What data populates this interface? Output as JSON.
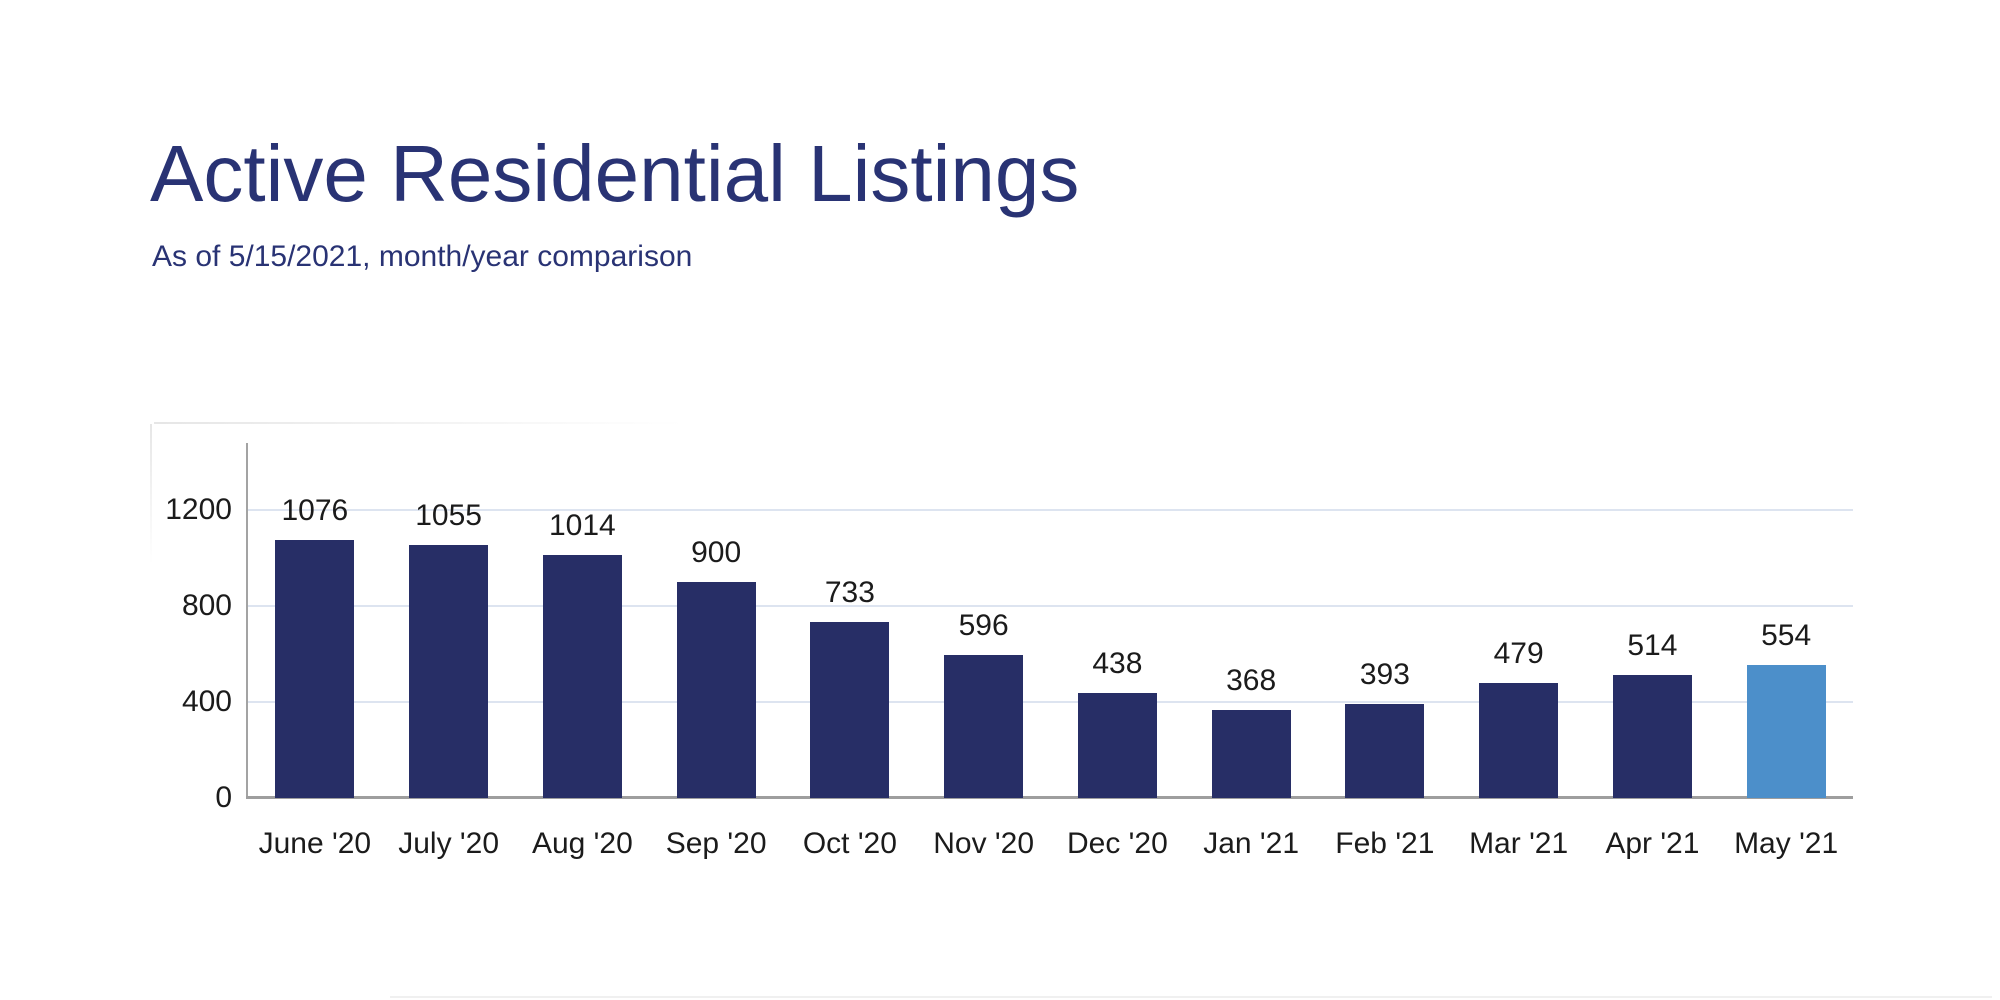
{
  "header": {
    "title": "Active Residential Listings",
    "subtitle": "As of 5/15/2021, month/year comparison",
    "title_color": "#293374"
  },
  "chart_data": {
    "type": "bar",
    "title": "Active Residential Listings",
    "subtitle": "As of 5/15/2021, month/year comparison",
    "categories": [
      "June '20",
      "July '20",
      "Aug '20",
      "Sep '20",
      "Oct '20",
      "Nov '20",
      "Dec '20",
      "Jan '21",
      "Feb '21",
      "Mar '21",
      "Apr '21",
      "May '21"
    ],
    "values": [
      1076,
      1055,
      1014,
      900,
      733,
      596,
      438,
      368,
      393,
      479,
      514,
      554
    ],
    "data_labels_shown": true,
    "xlabel": "",
    "ylabel": "",
    "y_ticks": [
      0,
      400,
      800,
      1200
    ],
    "ylim": [
      0,
      1480
    ],
    "grid": true,
    "legend": false,
    "highlight_index": 11,
    "colors": {
      "bar_default": "#272e66",
      "bar_highlight": "#4c8fca",
      "gridline": "#dde4f0",
      "axis": "#a3a3a3",
      "baseline": "#9e9e9e",
      "value_label": "#1b1b1b",
      "tick_label": "#1b1b1b"
    }
  }
}
